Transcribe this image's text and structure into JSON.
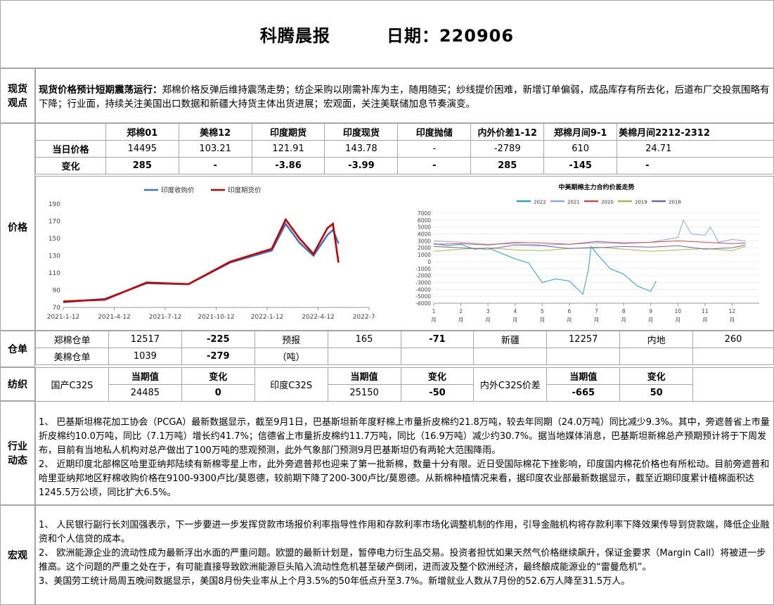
{
  "header": {
    "title": "科腾晨报",
    "date_label": "日期：220906"
  },
  "spot": {
    "section": "现货\n观点",
    "headline": "现货价格预计短期震荡运行：",
    "body": "郑棉价格反弹后维持震荡走势；纺企采购以刚需补库为主，随用随买；纱线提价困难，新增订单偏弱，成品库存有所去化，后道布厂交投氛围略有下降；行业面，持续关注美国出口数据和新疆大持货主体出货进展；宏观面，关注美联储加息节奏演变。"
  },
  "price": {
    "section": "价格",
    "columns": [
      "郑棉01",
      "美棉12",
      "印度期货",
      "印度现货",
      "印度抛储",
      "内外价差1-12",
      "郑棉月间9-1",
      "美棉月间2212-2312"
    ],
    "rows": [
      {
        "label": "当日价格",
        "values": [
          "14495",
          "103.21",
          "121.91",
          "143.78",
          "-",
          "-2789",
          "610",
          "24.71"
        ]
      },
      {
        "label": "变化",
        "values": [
          "285",
          "-",
          "-3.86",
          "-3.99",
          "-",
          "285",
          "-145",
          "-"
        ]
      }
    ]
  },
  "chart_data": [
    {
      "type": "line",
      "title": "",
      "legend": [
        "印度收购价",
        "印度期货价"
      ],
      "legend_position": "top",
      "x_ticks": [
        "2021-1-12",
        "2021-4-12",
        "2021-7-12",
        "2021-10-12",
        "2022-1-12",
        "2022-4-12",
        "2022-7-12"
      ],
      "y_ticks": [
        "70",
        "90",
        "110",
        "130",
        "150",
        "170",
        "190"
      ],
      "ylim": [
        70,
        190
      ],
      "colors": {
        "印度收购价": "#4472c4",
        "印度期货价": "#c00000"
      },
      "series": [
        {
          "name": "印度收购价",
          "x": [
            0,
            3,
            6,
            9,
            12,
            15,
            16,
            17,
            18,
            19,
            19.4,
            19.8
          ],
          "values": [
            76,
            80,
            98,
            97,
            122,
            136,
            167,
            145,
            130,
            154,
            160,
            144
          ]
        },
        {
          "name": "印度期货价",
          "x": [
            0,
            3,
            6,
            9,
            12,
            15,
            16,
            17,
            18,
            19,
            19.4,
            19.8
          ],
          "values": [
            77,
            79,
            99,
            97,
            123,
            138,
            172,
            150,
            132,
            162,
            167,
            122
          ]
        }
      ],
      "grid": false
    },
    {
      "type": "line",
      "title": "中美期棉主力合约价差走势",
      "legend": [
        "2022",
        "2021",
        "2020",
        "2019",
        "2018"
      ],
      "legend_position": "top",
      "x_ticks": [
        "1月",
        "2月",
        "3月",
        "4月",
        "5月",
        "6月",
        "7月",
        "8月",
        "9月",
        "10月",
        "11月",
        "12月"
      ],
      "y_ticks": [
        "-6000",
        "-5000",
        "-4000",
        "-3000",
        "-2000",
        "-1000",
        "0",
        "1000",
        "2000",
        "3000",
        "4000",
        "5000",
        "6000",
        "7000"
      ],
      "ylim": [
        -6000,
        7000
      ],
      "colors": {
        "2022": "#2ea1b8",
        "2021": "#8fa9e0",
        "2020": "#c0504d",
        "2019": "#9bbb59",
        "2018": "#8064a2"
      },
      "series": [
        {
          "name": "2022",
          "x": [
            1,
            1.5,
            2,
            2.5,
            3,
            3.5,
            4,
            4.5,
            5,
            5.5,
            6,
            6.5,
            6.7,
            6.8,
            7,
            7.5,
            8,
            8.5,
            9,
            9.2
          ],
          "values": [
            2600,
            2300,
            2500,
            1800,
            2000,
            1200,
            400,
            -200,
            -3000,
            -2500,
            -2800,
            -4700,
            -1200,
            2200,
            1200,
            -1000,
            -1800,
            -3500,
            -4300,
            -2800
          ]
        },
        {
          "name": "2021",
          "x": [
            1,
            2,
            3,
            4,
            5,
            6,
            7,
            8,
            9,
            10,
            10.2,
            10.5,
            11,
            11.2,
            11.5,
            12,
            12.5
          ],
          "values": [
            3000,
            2800,
            2500,
            2600,
            2400,
            2500,
            2700,
            2600,
            2800,
            3500,
            6000,
            4000,
            3800,
            5000,
            2800,
            3200,
            3000
          ]
        },
        {
          "name": "2020",
          "x": [
            1,
            2,
            3,
            4,
            5,
            6,
            7,
            8,
            9,
            10,
            11,
            12,
            12.5
          ],
          "values": [
            2500,
            2600,
            2400,
            2800,
            2700,
            2500,
            2900,
            2700,
            2800,
            3000,
            2800,
            2600,
            2700
          ]
        },
        {
          "name": "2019",
          "x": [
            1,
            2,
            3,
            4,
            5,
            6,
            7,
            8,
            9,
            10,
            11,
            12,
            12.5
          ],
          "values": [
            1500,
            1800,
            2000,
            1700,
            1600,
            1900,
            2100,
            1800,
            1500,
            1700,
            1900,
            1600,
            2200
          ]
        },
        {
          "name": "2018",
          "x": [
            1,
            2,
            3,
            4,
            5,
            6,
            7,
            8,
            9,
            10,
            11,
            12,
            12.5
          ],
          "values": [
            2200,
            2000,
            1800,
            2400,
            2300,
            1900,
            2000,
            2200,
            2100,
            2300,
            1800,
            2000,
            2400
          ]
        }
      ],
      "grid": true
    }
  ],
  "warehouse": {
    "section": "仓单",
    "row1": [
      "郑棉仓单",
      "12517",
      "-225",
      "预报",
      "165",
      "-71",
      "新疆",
      "12257",
      "内地",
      "260"
    ],
    "row2": [
      "美棉仓单",
      "1039",
      "-279",
      "（吨）"
    ]
  },
  "textile": {
    "section": "纺织",
    "left_label": "国产C32S",
    "mid_label": "印度C32S",
    "right_label": "内外C32S价差",
    "head_current": "当期值",
    "head_change": "变化",
    "values": [
      "24485",
      "0",
      "25150",
      "-50",
      "-665",
      "50"
    ]
  },
  "industry": {
    "section": "行业\n动态",
    "paragraphs": [
      "1、 巴基斯坦棉花加工协会（PCGA）最新数据显示，截至9月1日，巴基斯坦新年度籽棉上市量折皮棉约21.8万吨，较去年同期（24.0万吨）同比减少9.3%。其中，旁遮普省上市量折皮棉约10.0万吨，同比（7.1万吨）增长约41.7%；信德省上市量折皮棉约11.7万吨，同比（16.9万吨）减少约30.7%。据当地媒体消息，巴基斯坦新棉总产预期预计将于下周发布，目前有当地私人机构对总产做出了100万吨的悲观预测，此外气象部门预测9月巴基斯坦仍有两轮大范围降雨。",
      "2、 近期印度北部棉区哈里亚纳邦陆续有新棉零星上市，此外旁遮普邦也迎来了第一批新棉，数量十分有限。近日受国际棉花下挫影响，印度国内棉花价格也有所松动。目前旁遮普和哈里亚纳邦地区籽棉收购价格在9100-9300卢比/莫恩德，较前期下降了200-300卢比/莫恩德。从新棉种植情况来看，据印度农业部最新数据显示，截至近期印度累计植棉面积达1245.5万公顷，同比扩大6.5%。"
    ]
  },
  "macro": {
    "section": "宏观",
    "paragraphs": [
      "1、 人民银行副行长刘国强表示，下一步要进一步发挥贷款市场报价利率指导性作用和存款利率市场化调整机制的作用，引导金融机构将存款利率下降效果传导到贷款端，降低企业融资和个人信贷的成本。",
      "2、 欧洲能源企业的流动性成为最新浮出水面的严重问题。欧盟的最新计划是，暂停电力衍生品交易。投资者担忧如果天然气价格继续飙升，保证金要求（Margin Call）将被进一步推高。这个问题的严重之处在于，有可能直接导致欧洲能源巨头陷入流动性危机甚至破产倒闭，进而波及整个欧洲经济，最终酿成能源业的“雷曼危机”。",
      "3、美国劳工统计局周五晚间数据显示，美国8月份失业率从上个月3.5%的50年低点升至3.7%。新增就业人数从7月份的52.6万人降至31.5万人。"
    ]
  }
}
